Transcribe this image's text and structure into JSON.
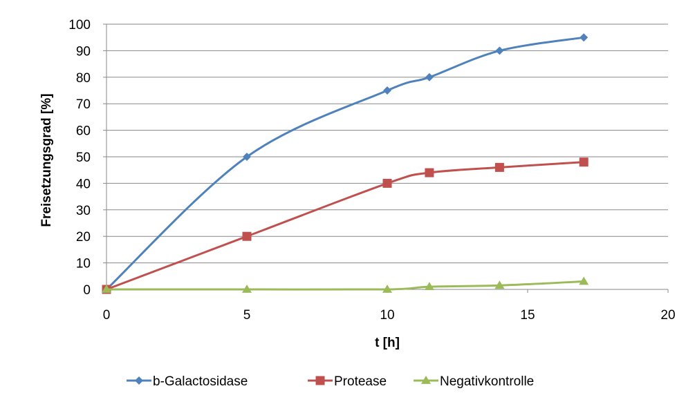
{
  "chart_data": {
    "type": "line",
    "xlabel": "t [h]",
    "ylabel": "Freisetzungsgrad [%]",
    "xlim": [
      0,
      20
    ],
    "ylim": [
      0,
      100
    ],
    "x_ticks": [
      0,
      5,
      10,
      15,
      20
    ],
    "y_ticks": [
      0,
      10,
      20,
      30,
      40,
      50,
      60,
      70,
      80,
      90,
      100
    ],
    "grid": "horizontal",
    "legend_position": "bottom",
    "series": [
      {
        "name": "b-Galactosidase",
        "color": "#4F81BD",
        "marker": "diamond",
        "points": [
          [
            0,
            0
          ],
          [
            5,
            50
          ],
          [
            10,
            75
          ],
          [
            11.5,
            80
          ],
          [
            14,
            90
          ],
          [
            17,
            95
          ]
        ]
      },
      {
        "name": "Protease",
        "color": "#C0504D",
        "marker": "square",
        "points": [
          [
            0,
            0
          ],
          [
            5,
            20
          ],
          [
            10,
            40
          ],
          [
            11.5,
            44
          ],
          [
            14,
            46
          ],
          [
            17,
            48
          ]
        ]
      },
      {
        "name": "Negativkontrolle",
        "color": "#9BBB59",
        "marker": "triangle",
        "points": [
          [
            0,
            0
          ],
          [
            5,
            0
          ],
          [
            10,
            0
          ],
          [
            11.5,
            1
          ],
          [
            14,
            1.5
          ],
          [
            17,
            3
          ]
        ]
      }
    ]
  }
}
